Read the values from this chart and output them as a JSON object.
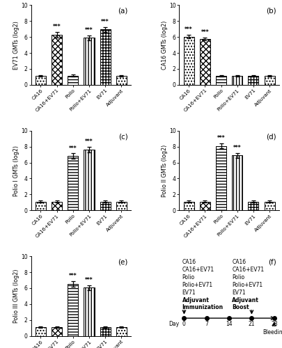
{
  "categories": [
    "CA16",
    "CA16+EV71",
    "Polio",
    "Polio+EV71",
    "EV71",
    "Adjuvant"
  ],
  "panel_a": {
    "title": "(a)",
    "ylabel": "EV71 GMTs (log2)",
    "values": [
      1.1,
      6.3,
      1.15,
      5.9,
      6.95,
      1.1
    ],
    "errors": [
      0.1,
      0.35,
      0.1,
      0.3,
      0.3,
      0.1
    ],
    "stars": [
      "",
      "***",
      "",
      "***",
      "***",
      ""
    ],
    "ylim": [
      0,
      10
    ]
  },
  "panel_b": {
    "title": "(b)",
    "ylabel": "CA16 GMTs (log2)",
    "values": [
      6.05,
      5.75,
      1.1,
      1.1,
      1.1,
      1.1
    ],
    "errors": [
      0.2,
      0.2,
      0.1,
      0.1,
      0.1,
      0.1
    ],
    "stars": [
      "***",
      "***",
      "",
      "",
      "",
      ""
    ],
    "ylim": [
      0,
      10
    ]
  },
  "panel_c": {
    "title": "(c)",
    "ylabel": "Polio I GMTs (log2)",
    "values": [
      1.1,
      1.1,
      6.8,
      7.6,
      1.1,
      1.1
    ],
    "errors": [
      0.1,
      0.1,
      0.35,
      0.35,
      0.1,
      0.1
    ],
    "stars": [
      "",
      "",
      "***",
      "***",
      "",
      ""
    ],
    "ylim": [
      0,
      10
    ]
  },
  "panel_d": {
    "title": "(d)",
    "ylabel": "Polio II GMTs (log2)",
    "values": [
      1.1,
      1.1,
      8.1,
      6.9,
      1.1,
      1.1
    ],
    "errors": [
      0.1,
      0.1,
      0.3,
      0.3,
      0.1,
      0.1
    ],
    "stars": [
      "",
      "",
      "***",
      "***",
      "",
      ""
    ],
    "ylim": [
      0,
      10
    ]
  },
  "panel_e": {
    "title": "(e)",
    "ylabel": "Polio III GMTs (log2)",
    "values": [
      1.1,
      1.1,
      6.5,
      6.05,
      1.1,
      1.1
    ],
    "errors": [
      0.1,
      0.1,
      0.35,
      0.3,
      0.1,
      0.1
    ],
    "stars": [
      "",
      "",
      "***",
      "***",
      "",
      ""
    ],
    "ylim": [
      0,
      10
    ]
  },
  "hatch_patterns": [
    "....",
    "xxxx",
    "====",
    "||||",
    "####",
    "...."
  ],
  "bar_width": 0.65,
  "left_labels": [
    "CA16",
    "CA16+EV71",
    "Polio",
    "Polio+EV71",
    "EV71",
    "Adjuvant"
  ],
  "right_labels": [
    "CA16",
    "CA16+EV71",
    "Polio",
    "Polio+EV71",
    "EV71",
    "Adjuvant"
  ],
  "timeline_days": [
    0,
    7,
    14,
    21,
    28
  ],
  "panel_f_title": "(f)"
}
